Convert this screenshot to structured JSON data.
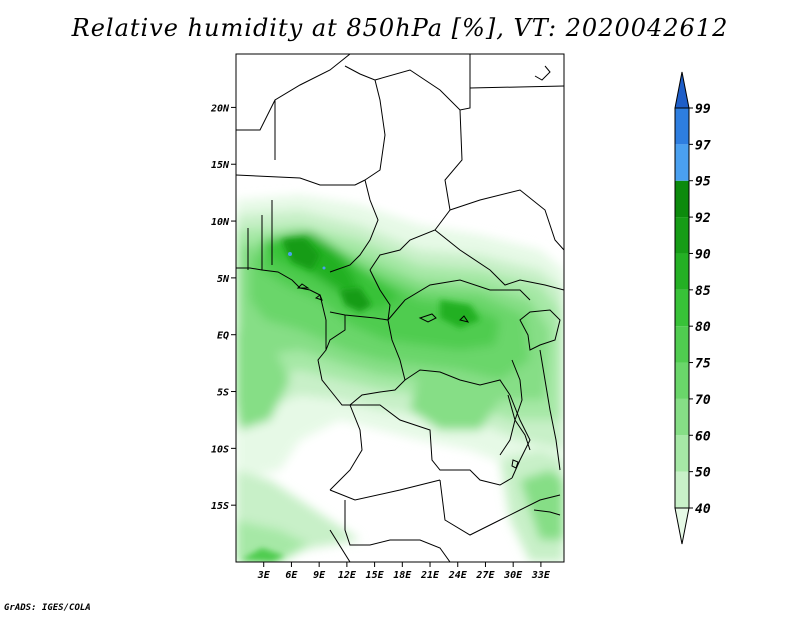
{
  "title": "Relative humidity at 850hPa [%], VT: 2020042612",
  "credit": "GrADS: IGES/COLA",
  "map": {
    "lon_range": [
      0,
      35.5
    ],
    "lat_range": [
      -20,
      24.7
    ],
    "y_ticks": [
      {
        "lat": 20,
        "label": "20N"
      },
      {
        "lat": 15,
        "label": "15N"
      },
      {
        "lat": 10,
        "label": "10N"
      },
      {
        "lat": 5,
        "label": "5N"
      },
      {
        "lat": 0,
        "label": "EQ"
      },
      {
        "lat": -5,
        "label": "5S"
      },
      {
        "lat": -10,
        "label": "10S"
      },
      {
        "lat": -15,
        "label": "15S"
      }
    ],
    "x_ticks": [
      {
        "lon": 3,
        "label": "3E"
      },
      {
        "lon": 6,
        "label": "6E"
      },
      {
        "lon": 9,
        "label": "9E"
      },
      {
        "lon": 12,
        "label": "12E"
      },
      {
        "lon": 15,
        "label": "15E"
      },
      {
        "lon": 18,
        "label": "18E"
      },
      {
        "lon": 21,
        "label": "21E"
      },
      {
        "lon": 24,
        "label": "24E"
      },
      {
        "lon": 27,
        "label": "27E"
      },
      {
        "lon": 30,
        "label": "30E"
      },
      {
        "lon": 33,
        "label": "33E"
      }
    ]
  },
  "colorbar": {
    "levels": [
      {
        "label": "40"
      },
      {
        "label": "50"
      },
      {
        "label": "60"
      },
      {
        "label": "70"
      },
      {
        "label": "75"
      },
      {
        "label": "80"
      },
      {
        "label": "85"
      },
      {
        "label": "90"
      },
      {
        "label": "92"
      },
      {
        "label": "95"
      },
      {
        "label": "97"
      },
      {
        "label": "99"
      }
    ],
    "colors": [
      "#e6f9e6",
      "#c8f0c8",
      "#a6e8a6",
      "#86de86",
      "#6ad66a",
      "#50cc50",
      "#38c238",
      "#24b024",
      "#169c16",
      "#0c8a0c",
      "#4aa0f0",
      "#2e7ee0",
      "#1e5ec8"
    ]
  }
}
